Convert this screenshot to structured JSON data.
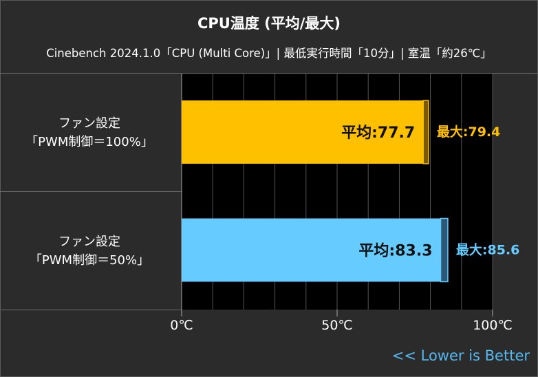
{
  "chart_data": {
    "type": "bar",
    "orientation": "horizontal",
    "title": "CPU温度 (平均/最大)",
    "subtitle": "Cinebench 2024.1.0「CPU (Multi Core)」| 最低実行時間「10分」| 室温「約26℃」",
    "categories": [
      {
        "line1": "ファン設定",
        "line2": "「PWM制御＝100%」"
      },
      {
        "line1": "ファン設定",
        "line2": "「PWM制御＝50%」"
      }
    ],
    "avg_prefix": "平均:",
    "max_prefix": "最大:",
    "series": [
      {
        "average": 77.7,
        "max": 79.4,
        "bar_color": "#ffc000",
        "max_marker_color": "#7a5a00",
        "max_label_color": "#ffc000"
      },
      {
        "average": 83.3,
        "max": 85.6,
        "bar_color": "#66ccff",
        "max_marker_color": "#2a5876",
        "max_label_color": "#66ccff"
      }
    ],
    "xlim": [
      0,
      100
    ],
    "xticks": [
      "0℃",
      "50℃",
      "100℃"
    ],
    "grid": true,
    "note": "<< Lower is Better"
  },
  "colors": {
    "background": "#2b2b2b",
    "plot_background": "#000000",
    "grid": "#555555",
    "note": "#55b8ee"
  }
}
